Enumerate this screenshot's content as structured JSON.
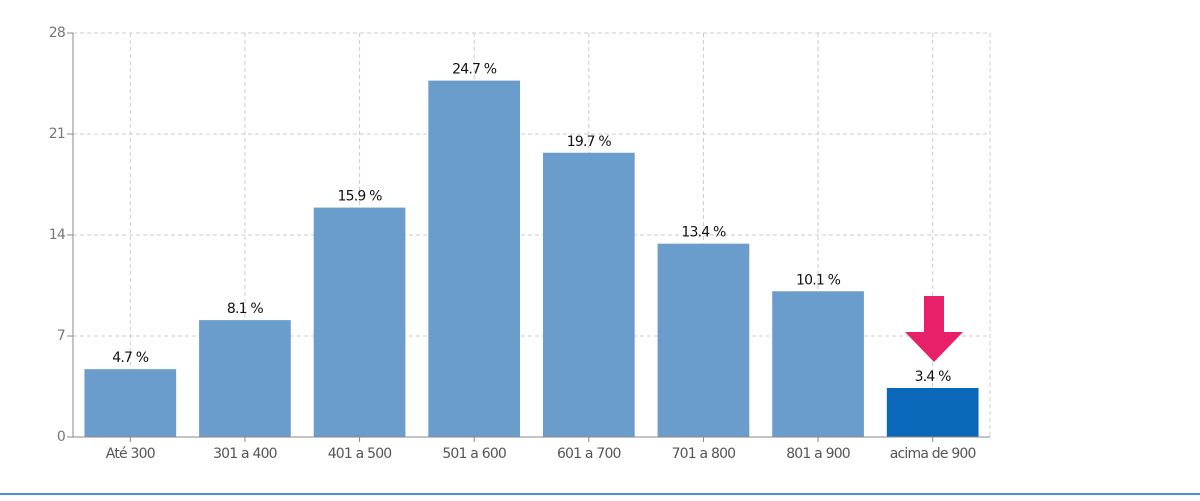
{
  "chart_data": {
    "type": "bar",
    "categories": [
      "Até 300",
      "301 a 400",
      "401 a 500",
      "501 a 600",
      "601 a 700",
      "701 a 800",
      "801 a 900",
      "acima de 900"
    ],
    "values": [
      4.7,
      8.1,
      15.9,
      24.7,
      19.7,
      13.4,
      10.1,
      3.4
    ],
    "value_labels": [
      "4.7 %",
      "8.1 %",
      "15.9 %",
      "24.7 %",
      "19.7 %",
      "13.4 %",
      "10.1 %",
      "3.4 %"
    ],
    "colors": [
      "#6a9dcb",
      "#6a9dcb",
      "#6a9dcb",
      "#6a9dcb",
      "#6a9dcb",
      "#6a9dcb",
      "#6a9dcb",
      "#0b67b9"
    ],
    "ylim": [
      0,
      28
    ],
    "yticks": [
      0,
      7,
      14,
      21,
      28
    ],
    "grid": true
  }
}
